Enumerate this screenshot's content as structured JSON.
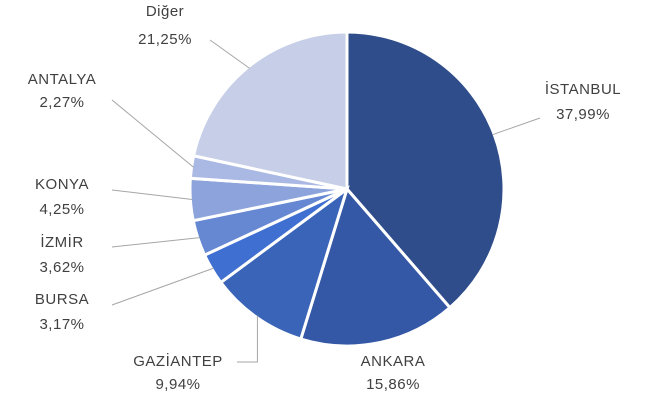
{
  "chart_data": {
    "type": "pie",
    "categories": [
      "İSTANBUL",
      "ANKARA",
      "GAZİANTEP",
      "BURSA",
      "İZMİR",
      "KONYA",
      "ANTALYA",
      "Diğer"
    ],
    "values": [
      37.99,
      15.86,
      9.94,
      3.17,
      3.62,
      4.25,
      2.27,
      21.25
    ],
    "value_labels": [
      "37,99%",
      "15,86%",
      "9,94%",
      "3,17%",
      "3,62%",
      "4,25%",
      "2,27%",
      "21,25%"
    ],
    "colors": [
      "#2f4d8a",
      "#3458a6",
      "#3a64b8",
      "#3f6fd0",
      "#6687d2",
      "#8ca3dc",
      "#aab9e3",
      "#c6cfe7"
    ]
  }
}
